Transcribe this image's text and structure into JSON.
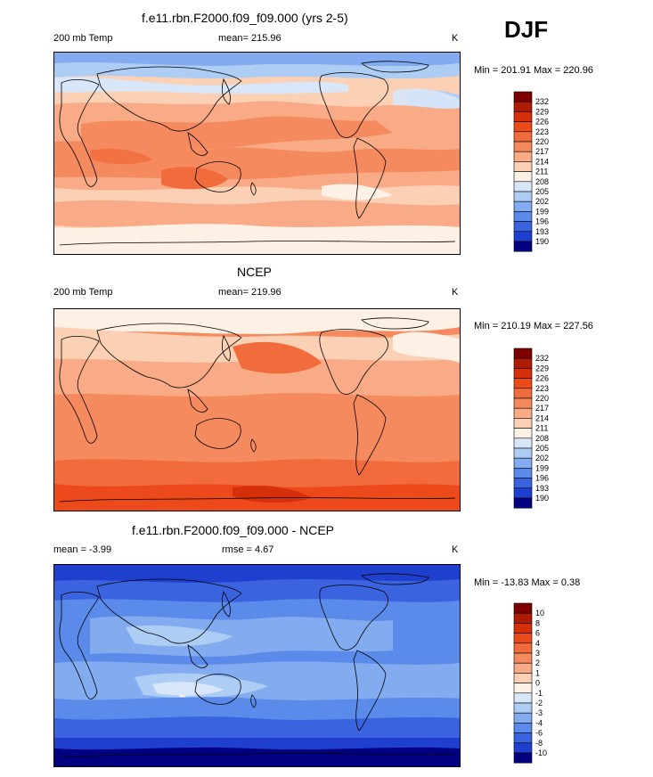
{
  "season": "DJF",
  "panels": [
    {
      "title": "f.e11.rbn.F2000.f09_f09.000 (yrs 2-5)",
      "left_label": "200 mb Temp",
      "center_label": "mean= 215.96",
      "units": "K",
      "minmax": "Min = 201.91 Max = 220.96"
    },
    {
      "title": "NCEP",
      "left_label": "200 mb Temp",
      "center_label": "mean= 219.96",
      "units": "K",
      "minmax": "Min = 210.19 Max = 227.56"
    },
    {
      "title": "f.e11.rbn.F2000.f09_f09.000 - NCEP",
      "left_label": "mean =  -3.99",
      "center_label": "rmse =   4.67",
      "units": "K",
      "minmax": "Min = -13.83 Max =   0.38"
    }
  ],
  "colorbars": {
    "temperature": {
      "labels": [
        "232",
        "229",
        "226",
        "223",
        "220",
        "217",
        "214",
        "211",
        "208",
        "205",
        "202",
        "199",
        "196",
        "193",
        "190"
      ],
      "colors": [
        "#7f0000",
        "#b01a05",
        "#d5300a",
        "#ec4a1a",
        "#f26b3c",
        "#f58a5f",
        "#f8ab86",
        "#fbd0b5",
        "#fdf0e4",
        "#d7e6f8",
        "#aecdf5",
        "#82acef",
        "#5a8aea",
        "#3a63e0",
        "#1f3fcf",
        "#000080"
      ]
    },
    "difference": {
      "labels": [
        "10",
        "8",
        "6",
        "4",
        "3",
        "2",
        "1",
        "0",
        "-1",
        "-2",
        "-3",
        "-4",
        "-6",
        "-8",
        "-10"
      ],
      "colors": [
        "#7f0000",
        "#b01a05",
        "#d5300a",
        "#ec4a1a",
        "#f26b3c",
        "#f58a5f",
        "#f8ab86",
        "#fbd0b5",
        "#fdf0e4",
        "#d7e6f8",
        "#aecdf5",
        "#82acef",
        "#5a8aea",
        "#3a63e0",
        "#1f3fcf",
        "#000080"
      ]
    }
  }
}
